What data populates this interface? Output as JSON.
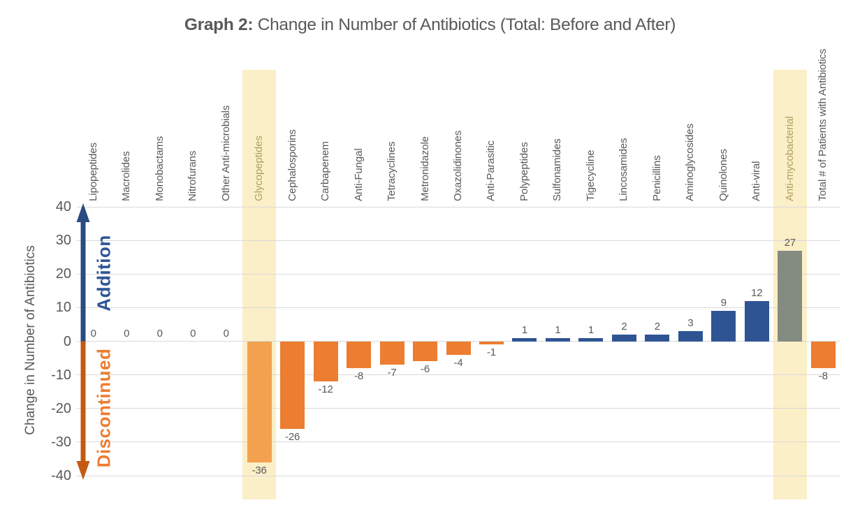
{
  "header": {
    "title_prefix": "Graph 2:",
    "title_rest": " Change in Number of Antibiotics (Total: Before and After)"
  },
  "y_axis": {
    "title": "Change in Number of Antibiotics",
    "ticks": [
      40,
      30,
      20,
      10,
      0,
      -10,
      -20,
      -30,
      -40
    ],
    "min": -40,
    "max": 40
  },
  "annotations": {
    "addition": "Addition",
    "discontinued": "Discontinued"
  },
  "colors": {
    "text_gray": "#595959",
    "gridline": "#D9D9D9",
    "positive_bar": "#2F5494",
    "negative_bar": "#EC7D31",
    "glycopeptides_bar": "#F3A14E",
    "antimycobacterial_bar": "#848C82",
    "highlight_band": "#FBEFC7",
    "highlight_label_text": "#AF9F62",
    "addition_text": "#2E5597",
    "discontinued_text": "#ED7D31",
    "arrow_up": "#2A4A82",
    "arrow_down": "#C45A11"
  },
  "chart_data": {
    "type": "bar",
    "title": "Graph 2: Change in Number of Antibiotics (Total: Before and After)",
    "xlabel": "",
    "ylabel": "Change in Number of Antibiotics",
    "ylim": [
      -40,
      40
    ],
    "ytick_step": 10,
    "grid": true,
    "legend_position": "none",
    "categories": [
      "Lipopeptides",
      "Macrolides",
      "Monobactams",
      "Nitrofurans",
      "Other Anti-microbials",
      "Glycopeptides",
      "Cephalosporins",
      "Carbapenem",
      "Anti-Fungal",
      "Tetracyclines",
      "Metronidazole",
      "Oxazolidinones",
      "Anti-Parasitic",
      "Polypeptides",
      "Sulfonamides",
      "Tigecycline",
      "Lincosamides",
      "Penicillins",
      "Aminoglycosides",
      "Quinolones",
      "Anti-viral",
      "Anti-mycobacterial",
      "Total # of Patients with Antibiotics"
    ],
    "values": [
      0,
      0,
      0,
      0,
      0,
      -36,
      -26,
      -12,
      -8,
      -7,
      -6,
      -4,
      -1,
      1,
      1,
      1,
      2,
      2,
      3,
      9,
      12,
      27,
      -8
    ],
    "data_labels": [
      "0",
      "0",
      "0",
      "0",
      "0",
      "-36",
      "-26",
      "-12",
      "-8",
      "-7",
      "-6",
      "-4",
      "-1",
      "1",
      "1",
      "1",
      "2",
      "2",
      "3",
      "9",
      "12",
      "27",
      "-8"
    ],
    "highlighted_categories": [
      "Glycopeptides",
      "Anti-mycobacterial"
    ],
    "bar_color_overrides": {
      "Glycopeptides": "#F3A14E",
      "Anti-mycobacterial": "#848C82"
    },
    "positive_color": "#2F5494",
    "negative_color": "#EC7D31",
    "axis_annotations": [
      {
        "text": "Addition",
        "direction": "up",
        "color": "#2E5597"
      },
      {
        "text": "Discontinued",
        "direction": "down",
        "color": "#ED7D31"
      }
    ]
  }
}
